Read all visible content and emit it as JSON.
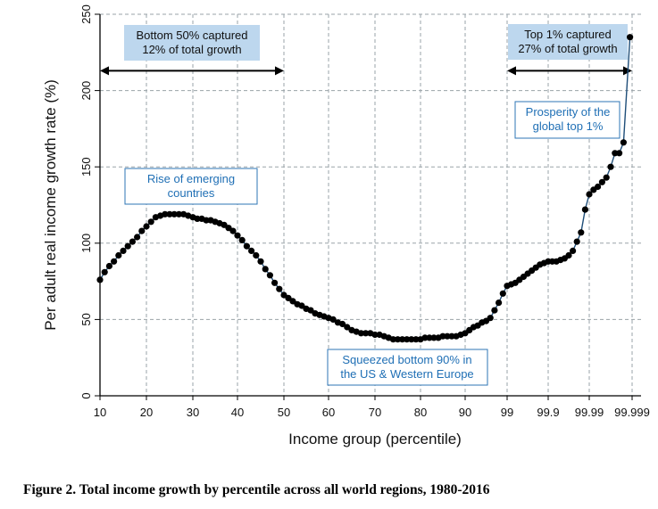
{
  "figure": {
    "caption": "Figure 2.  Total income growth by percentile across all world regions, 1980-2016"
  },
  "chart_data": {
    "type": "line",
    "title": "",
    "xlabel": "Income group (percentile)",
    "ylabel": "Per adult real income growth rate (%)",
    "x_scale": "piecewise: tick index 0-12 maps to percentile labels",
    "x_tick_labels": [
      "10",
      "20",
      "30",
      "40",
      "50",
      "60",
      "70",
      "80",
      "90",
      "99",
      "99.9",
      "99.99",
      "99.999"
    ],
    "y_ticks": [
      0,
      50,
      100,
      150,
      200,
      250
    ],
    "ylim": [
      0,
      250
    ],
    "grid": true,
    "colors": {
      "line": "#1f4e79",
      "marker": "#000000",
      "grid": "#9aa3a8",
      "highlight_box": "#bdd7ee",
      "annotation_blue": "#1f6fb5"
    },
    "series": [
      {
        "name": "Growth rate",
        "points": [
          [
            0.0,
            76
          ],
          [
            0.1,
            81
          ],
          [
            0.2,
            85
          ],
          [
            0.3,
            88
          ],
          [
            0.4,
            92
          ],
          [
            0.5,
            95
          ],
          [
            0.6,
            98
          ],
          [
            0.7,
            101
          ],
          [
            0.8,
            104
          ],
          [
            0.9,
            108
          ],
          [
            1.0,
            111
          ],
          [
            1.1,
            114
          ],
          [
            1.2,
            117
          ],
          [
            1.3,
            118
          ],
          [
            1.4,
            119
          ],
          [
            1.5,
            119
          ],
          [
            1.6,
            119
          ],
          [
            1.7,
            119
          ],
          [
            1.8,
            119
          ],
          [
            1.9,
            118
          ],
          [
            2.0,
            117
          ],
          [
            2.1,
            116
          ],
          [
            2.2,
            116
          ],
          [
            2.3,
            115
          ],
          [
            2.4,
            115
          ],
          [
            2.5,
            114
          ],
          [
            2.6,
            113
          ],
          [
            2.7,
            112
          ],
          [
            2.8,
            110
          ],
          [
            2.9,
            108
          ],
          [
            3.0,
            105
          ],
          [
            3.1,
            102
          ],
          [
            3.2,
            98
          ],
          [
            3.3,
            95
          ],
          [
            3.4,
            92
          ],
          [
            3.5,
            88
          ],
          [
            3.6,
            83
          ],
          [
            3.7,
            79
          ],
          [
            3.8,
            74
          ],
          [
            3.9,
            70
          ],
          [
            4.0,
            66
          ],
          [
            4.1,
            64
          ],
          [
            4.2,
            62
          ],
          [
            4.3,
            60
          ],
          [
            4.4,
            59
          ],
          [
            4.5,
            57
          ],
          [
            4.6,
            56
          ],
          [
            4.7,
            54
          ],
          [
            4.8,
            53
          ],
          [
            4.9,
            52
          ],
          [
            5.0,
            51
          ],
          [
            5.1,
            50
          ],
          [
            5.2,
            48
          ],
          [
            5.3,
            47
          ],
          [
            5.4,
            45
          ],
          [
            5.5,
            43
          ],
          [
            5.6,
            42
          ],
          [
            5.7,
            41
          ],
          [
            5.8,
            41
          ],
          [
            5.9,
            41
          ],
          [
            6.0,
            40
          ],
          [
            6.1,
            40
          ],
          [
            6.2,
            39
          ],
          [
            6.3,
            38
          ],
          [
            6.4,
            37
          ],
          [
            6.5,
            37
          ],
          [
            6.6,
            37
          ],
          [
            6.7,
            37
          ],
          [
            6.8,
            37
          ],
          [
            6.9,
            37
          ],
          [
            7.0,
            37
          ],
          [
            7.1,
            38
          ],
          [
            7.2,
            38
          ],
          [
            7.3,
            38
          ],
          [
            7.4,
            38
          ],
          [
            7.5,
            39
          ],
          [
            7.6,
            39
          ],
          [
            7.7,
            39
          ],
          [
            7.8,
            39
          ],
          [
            7.9,
            40
          ],
          [
            8.0,
            41
          ],
          [
            8.1,
            43
          ],
          [
            8.2,
            45
          ],
          [
            8.3,
            46
          ],
          [
            8.4,
            48
          ],
          [
            8.5,
            49
          ],
          [
            8.6,
            51
          ],
          [
            8.7,
            56
          ],
          [
            8.8,
            61
          ],
          [
            8.9,
            67
          ],
          [
            9.0,
            72
          ],
          [
            9.1,
            73
          ],
          [
            9.2,
            74
          ],
          [
            9.3,
            76
          ],
          [
            9.4,
            78
          ],
          [
            9.5,
            80
          ],
          [
            9.6,
            82
          ],
          [
            9.7,
            84
          ],
          [
            9.8,
            86
          ],
          [
            9.9,
            87
          ],
          [
            10.0,
            88
          ],
          [
            10.1,
            88
          ],
          [
            10.2,
            88
          ],
          [
            10.3,
            89
          ],
          [
            10.4,
            90
          ],
          [
            10.5,
            92
          ],
          [
            10.6,
            95
          ],
          [
            10.7,
            101
          ],
          [
            10.8,
            107
          ],
          [
            10.9,
            122
          ],
          [
            11.0,
            132
          ],
          [
            11.1,
            135
          ],
          [
            11.2,
            137
          ],
          [
            11.3,
            140
          ],
          [
            11.4,
            143
          ],
          [
            11.5,
            150
          ],
          [
            11.6,
            159
          ],
          [
            11.7,
            159
          ],
          [
            11.8,
            166
          ],
          [
            11.95,
            235
          ]
        ]
      }
    ],
    "annotations": [
      {
        "id": "bottom50",
        "lines": [
          "Bottom 50% captured",
          "12% of total growth"
        ],
        "style": "filled",
        "x_range": [
          0,
          4
        ],
        "arrow_y": 213
      },
      {
        "id": "top1",
        "lines": [
          "Top 1% captured",
          "27% of total growth"
        ],
        "style": "filled",
        "x_range": [
          9,
          12
        ],
        "arrow_y": 213
      },
      {
        "id": "emerging",
        "lines": [
          "Rise of emerging",
          "countries"
        ],
        "style": "outlined"
      },
      {
        "id": "squeezed",
        "lines": [
          "Squeezed bottom 90% in",
          "the US & Western Europe"
        ],
        "style": "outlined"
      },
      {
        "id": "prosperity",
        "lines": [
          "Prosperity of the",
          "global top 1%"
        ],
        "style": "outlined"
      }
    ]
  }
}
